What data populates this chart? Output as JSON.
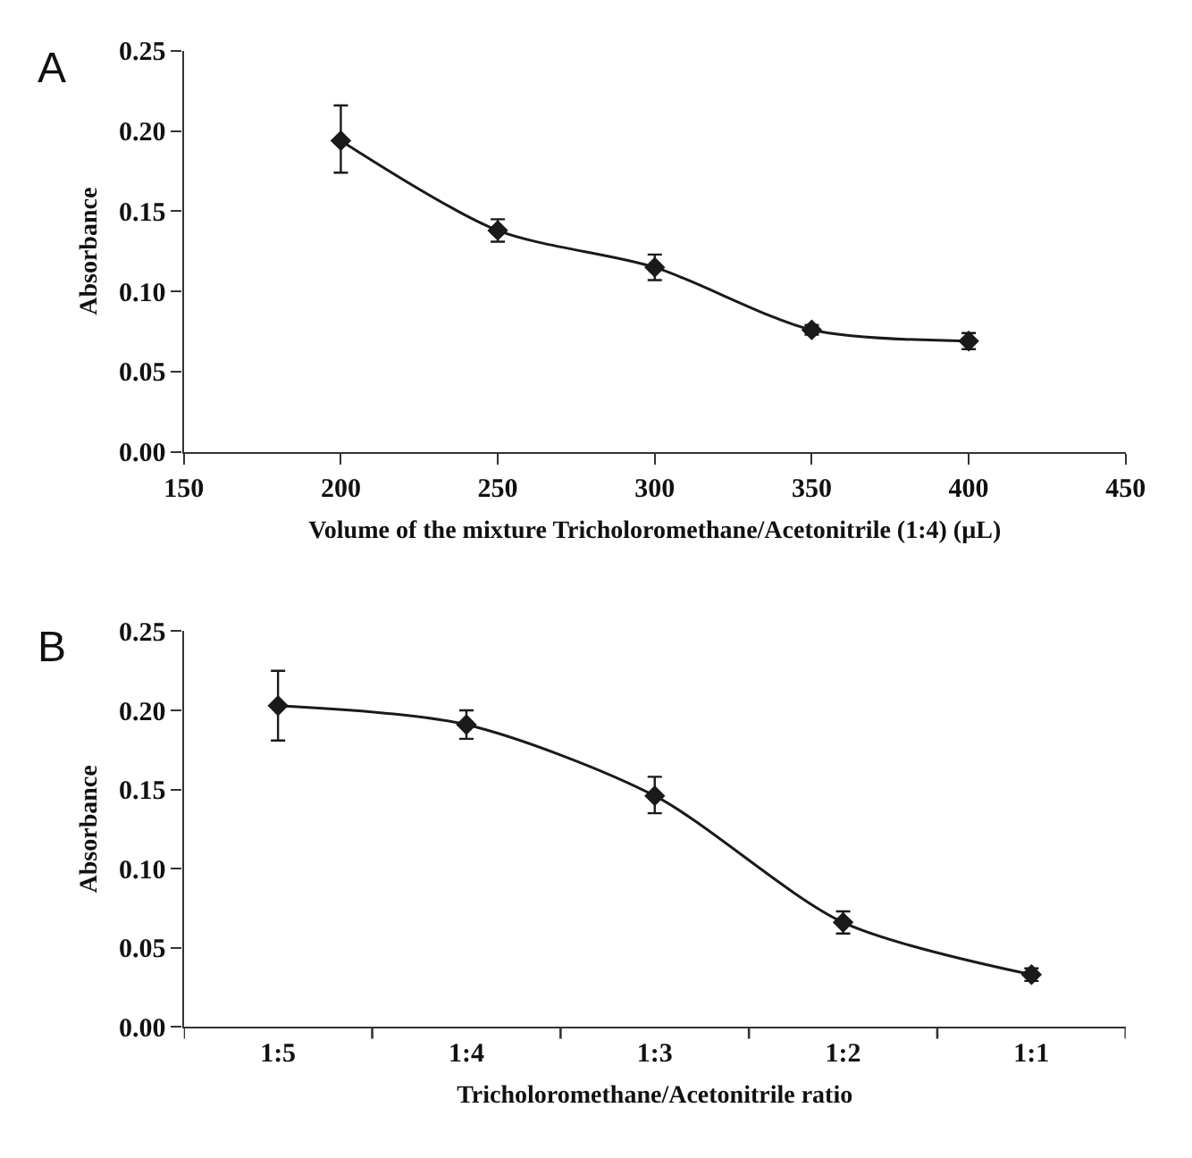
{
  "chart_data": [
    {
      "type": "line",
      "annotations": [
        "A"
      ],
      "xlabel": "Volume of the mixture Tricholoromethane/Acetonitrile (1:4) (µL)",
      "ylabel": "Absorbance",
      "x": [
        200,
        250,
        300,
        350,
        400
      ],
      "series": [
        {
          "color": "#1a1a1a",
          "values": [
            0.194,
            0.138,
            0.115,
            0.076,
            0.069
          ],
          "errors": [
            [
              0.174,
              0.216
            ],
            0.007,
            0.008,
            0.003,
            0.005
          ]
        }
      ],
      "xlim": [
        150,
        450
      ],
      "xticks": [
        150,
        200,
        250,
        300,
        350,
        400,
        450
      ],
      "ylim": [
        0,
        0.25
      ],
      "yticks": [
        {
          "value": 0,
          "label": "0.00"
        },
        {
          "value": 0.05,
          "label": "0.05"
        },
        {
          "value": 0.1,
          "label": "0.10"
        },
        {
          "value": 0.15,
          "label": "0.15"
        },
        {
          "value": 0.2,
          "label": "0.20"
        },
        {
          "value": 0.25,
          "label": "0.25"
        }
      ],
      "legend": false,
      "marker": "diamond",
      "line_style": "solid"
    },
    {
      "type": "line",
      "annotations": [
        "B"
      ],
      "xlabel": "Tricholoromethane/Acetonitrile ratio",
      "ylabel": "Absorbance",
      "categories": [
        "1:5",
        "1:4",
        "1:3",
        "1:2",
        "1:1"
      ],
      "series": [
        {
          "color": "#1a1a1a",
          "values": [
            0.203,
            0.191,
            0.146,
            0.066,
            0.033
          ],
          "errors": [
            [
              0.181,
              0.225
            ],
            0.009,
            [
              0.135,
              0.158
            ],
            0.007,
            0.004
          ]
        }
      ],
      "ylim": [
        0,
        0.25
      ],
      "yticks": [
        {
          "value": 0,
          "label": "0.00"
        },
        {
          "value": 0.05,
          "label": "0.05"
        },
        {
          "value": 0.1,
          "label": "0.10"
        },
        {
          "value": 0.15,
          "label": "0.15"
        },
        {
          "value": 0.2,
          "label": "0.20"
        },
        {
          "value": 0.25,
          "label": "0.25"
        }
      ],
      "legend": false,
      "marker": "diamond",
      "line_style": "solid"
    }
  ]
}
